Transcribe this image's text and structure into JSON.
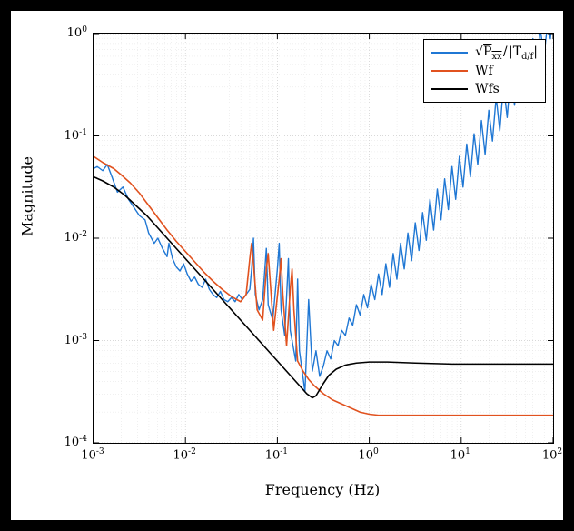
{
  "chart": {
    "type": "line-loglog",
    "background_color": "#000000",
    "panel_color": "#ffffff",
    "axes": {
      "x": {
        "scale": "log",
        "min_exp": -3,
        "max_exp": 2,
        "label": "Frequency (Hz)",
        "tick_exps": [
          -3,
          -2,
          -1,
          0,
          1,
          2
        ],
        "grid_color": "#cccccc",
        "minor_grid_color": "#e2e2e2"
      },
      "y": {
        "scale": "log",
        "min_exp": -4,
        "max_exp": 0,
        "label": "Magnitude",
        "tick_exps": [
          -4,
          -3,
          -2,
          -1,
          0
        ],
        "grid_color": "#cccccc",
        "minor_grid_color": "#e2e2e2"
      },
      "tick_fontsize": 13,
      "label_fontsize": 16
    },
    "legend": {
      "position": "upper-right",
      "border_color": "#000000",
      "background_color": "#ffffff",
      "fontsize": 14
    },
    "series": [
      {
        "name": "sqrt_Pxx_over_Tdf",
        "legend_label_html": "&radic;<span style='text-decoration:overline'>P<sub>xx</sub></span>&#8202;/&#8202;|T<sub>d/f</sub>|",
        "color": "#1f77d4",
        "line_width": 1.4,
        "points": [
          [
            -3.0,
            -1.32
          ],
          [
            -2.96,
            -1.3
          ],
          [
            -2.9,
            -1.34
          ],
          [
            -2.85,
            -1.28
          ],
          [
            -2.8,
            -1.4
          ],
          [
            -2.74,
            -1.55
          ],
          [
            -2.68,
            -1.5
          ],
          [
            -2.62,
            -1.62
          ],
          [
            -2.56,
            -1.7
          ],
          [
            -2.5,
            -1.78
          ],
          [
            -2.44,
            -1.82
          ],
          [
            -2.4,
            -1.95
          ],
          [
            -2.34,
            -2.05
          ],
          [
            -2.3,
            -2.0
          ],
          [
            -2.25,
            -2.1
          ],
          [
            -2.2,
            -2.18
          ],
          [
            -2.18,
            -2.05
          ],
          [
            -2.14,
            -2.2
          ],
          [
            -2.1,
            -2.28
          ],
          [
            -2.06,
            -2.32
          ],
          [
            -2.02,
            -2.25
          ],
          [
            -1.98,
            -2.35
          ],
          [
            -1.94,
            -2.42
          ],
          [
            -1.9,
            -2.38
          ],
          [
            -1.86,
            -2.45
          ],
          [
            -1.82,
            -2.48
          ],
          [
            -1.78,
            -2.4
          ],
          [
            -1.74,
            -2.5
          ],
          [
            -1.7,
            -2.55
          ],
          [
            -1.66,
            -2.58
          ],
          [
            -1.62,
            -2.52
          ],
          [
            -1.58,
            -2.6
          ],
          [
            -1.54,
            -2.62
          ],
          [
            -1.5,
            -2.58
          ],
          [
            -1.46,
            -2.62
          ],
          [
            -1.42,
            -2.55
          ],
          [
            -1.38,
            -2.6
          ],
          [
            -1.34,
            -2.55
          ],
          [
            -1.3,
            -2.5
          ],
          [
            -1.28,
            -2.3
          ],
          [
            -1.26,
            -2.0
          ],
          [
            -1.24,
            -2.55
          ],
          [
            -1.2,
            -2.7
          ],
          [
            -1.16,
            -2.6
          ],
          [
            -1.12,
            -2.1
          ],
          [
            -1.1,
            -2.65
          ],
          [
            -1.05,
            -2.8
          ],
          [
            -1.0,
            -2.3
          ],
          [
            -0.98,
            -2.05
          ],
          [
            -0.96,
            -2.7
          ],
          [
            -0.92,
            -2.95
          ],
          [
            -0.88,
            -2.2
          ],
          [
            -0.86,
            -2.9
          ],
          [
            -0.8,
            -3.2
          ],
          [
            -0.78,
            -2.4
          ],
          [
            -0.76,
            -3.1
          ],
          [
            -0.7,
            -3.5
          ],
          [
            -0.66,
            -2.6
          ],
          [
            -0.62,
            -3.3
          ],
          [
            -0.58,
            -3.1
          ],
          [
            -0.54,
            -3.35
          ],
          [
            -0.5,
            -3.25
          ],
          [
            -0.46,
            -3.1
          ],
          [
            -0.42,
            -3.18
          ],
          [
            -0.38,
            -3.0
          ],
          [
            -0.34,
            -3.05
          ],
          [
            -0.3,
            -2.9
          ],
          [
            -0.26,
            -2.95
          ],
          [
            -0.22,
            -2.78
          ],
          [
            -0.18,
            -2.85
          ],
          [
            -0.14,
            -2.65
          ],
          [
            -0.1,
            -2.75
          ],
          [
            -0.06,
            -2.55
          ],
          [
            -0.02,
            -2.68
          ],
          [
            0.02,
            -2.45
          ],
          [
            0.06,
            -2.6
          ],
          [
            0.1,
            -2.35
          ],
          [
            0.14,
            -2.55
          ],
          [
            0.18,
            -2.25
          ],
          [
            0.22,
            -2.48
          ],
          [
            0.26,
            -2.15
          ],
          [
            0.3,
            -2.4
          ],
          [
            0.34,
            -2.05
          ],
          [
            0.38,
            -2.3
          ],
          [
            0.42,
            -1.95
          ],
          [
            0.46,
            -2.22
          ],
          [
            0.5,
            -1.85
          ],
          [
            0.54,
            -2.12
          ],
          [
            0.58,
            -1.75
          ],
          [
            0.62,
            -2.02
          ],
          [
            0.66,
            -1.62
          ],
          [
            0.7,
            -1.92
          ],
          [
            0.74,
            -1.52
          ],
          [
            0.78,
            -1.82
          ],
          [
            0.82,
            -1.42
          ],
          [
            0.86,
            -1.72
          ],
          [
            0.9,
            -1.3
          ],
          [
            0.94,
            -1.62
          ],
          [
            0.98,
            -1.2
          ],
          [
            1.02,
            -1.5
          ],
          [
            1.06,
            -1.08
          ],
          [
            1.1,
            -1.4
          ],
          [
            1.14,
            -0.98
          ],
          [
            1.18,
            -1.28
          ],
          [
            1.22,
            -0.85
          ],
          [
            1.26,
            -1.18
          ],
          [
            1.3,
            -0.75
          ],
          [
            1.34,
            -1.05
          ],
          [
            1.38,
            -0.62
          ],
          [
            1.42,
            -0.95
          ],
          [
            1.46,
            -0.5
          ],
          [
            1.5,
            -0.82
          ],
          [
            1.54,
            -0.38
          ],
          [
            1.58,
            -0.7
          ],
          [
            1.62,
            -0.25
          ],
          [
            1.66,
            -0.58
          ],
          [
            1.7,
            -0.15
          ],
          [
            1.74,
            -0.45
          ],
          [
            1.78,
            -0.05
          ],
          [
            1.82,
            -0.35
          ],
          [
            1.86,
            0.05
          ],
          [
            1.9,
            -0.22
          ],
          [
            1.94,
            0.1
          ],
          [
            1.97,
            -0.05
          ],
          [
            2.0,
            0.25
          ]
        ]
      },
      {
        "name": "Wf",
        "legend_label_html": "Wf",
        "color": "#e1521f",
        "line_width": 1.6,
        "points": [
          [
            -3.0,
            -1.2
          ],
          [
            -2.9,
            -1.26
          ],
          [
            -2.78,
            -1.32
          ],
          [
            -2.7,
            -1.38
          ],
          [
            -2.6,
            -1.46
          ],
          [
            -2.5,
            -1.56
          ],
          [
            -2.4,
            -1.68
          ],
          [
            -2.3,
            -1.8
          ],
          [
            -2.2,
            -1.92
          ],
          [
            -2.1,
            -2.03
          ],
          [
            -2.0,
            -2.13
          ],
          [
            -1.9,
            -2.23
          ],
          [
            -1.8,
            -2.33
          ],
          [
            -1.7,
            -2.42
          ],
          [
            -1.6,
            -2.5
          ],
          [
            -1.5,
            -2.57
          ],
          [
            -1.4,
            -2.62
          ],
          [
            -1.34,
            -2.55
          ],
          [
            -1.3,
            -2.2
          ],
          [
            -1.28,
            -2.05
          ],
          [
            -1.26,
            -2.25
          ],
          [
            -1.22,
            -2.7
          ],
          [
            -1.16,
            -2.8
          ],
          [
            -1.12,
            -2.3
          ],
          [
            -1.1,
            -2.15
          ],
          [
            -1.08,
            -2.4
          ],
          [
            -1.04,
            -2.9
          ],
          [
            -0.98,
            -2.4
          ],
          [
            -0.96,
            -2.2
          ],
          [
            -0.94,
            -2.55
          ],
          [
            -0.9,
            -3.05
          ],
          [
            -0.86,
            -2.5
          ],
          [
            -0.84,
            -2.3
          ],
          [
            -0.82,
            -2.7
          ],
          [
            -0.78,
            -3.2
          ],
          [
            -0.72,
            -3.3
          ],
          [
            -0.66,
            -3.38
          ],
          [
            -0.6,
            -3.44
          ],
          [
            -0.5,
            -3.52
          ],
          [
            -0.4,
            -3.58
          ],
          [
            -0.3,
            -3.62
          ],
          [
            -0.2,
            -3.66
          ],
          [
            -0.1,
            -3.7
          ],
          [
            0.0,
            -3.72
          ],
          [
            0.1,
            -3.73
          ],
          [
            0.2,
            -3.73
          ],
          [
            0.3,
            -3.73
          ],
          [
            0.5,
            -3.73
          ],
          [
            0.8,
            -3.73
          ],
          [
            1.2,
            -3.73
          ],
          [
            1.6,
            -3.73
          ],
          [
            2.0,
            -3.73
          ]
        ]
      },
      {
        "name": "Wfs",
        "legend_label_html": "Wfs",
        "color": "#000000",
        "line_width": 1.6,
        "points": [
          [
            -3.0,
            -1.4
          ],
          [
            -2.9,
            -1.44
          ],
          [
            -2.78,
            -1.5
          ],
          [
            -2.66,
            -1.58
          ],
          [
            -2.54,
            -1.68
          ],
          [
            -2.42,
            -1.78
          ],
          [
            -2.3,
            -1.9
          ],
          [
            -2.18,
            -2.02
          ],
          [
            -2.06,
            -2.14
          ],
          [
            -1.94,
            -2.26
          ],
          [
            -1.82,
            -2.38
          ],
          [
            -1.7,
            -2.5
          ],
          [
            -1.58,
            -2.62
          ],
          [
            -1.46,
            -2.74
          ],
          [
            -1.34,
            -2.86
          ],
          [
            -1.22,
            -2.98
          ],
          [
            -1.1,
            -3.1
          ],
          [
            -0.98,
            -3.22
          ],
          [
            -0.86,
            -3.34
          ],
          [
            -0.76,
            -3.44
          ],
          [
            -0.68,
            -3.52
          ],
          [
            -0.62,
            -3.56
          ],
          [
            -0.58,
            -3.54
          ],
          [
            -0.54,
            -3.48
          ],
          [
            -0.5,
            -3.42
          ],
          [
            -0.44,
            -3.34
          ],
          [
            -0.36,
            -3.28
          ],
          [
            -0.26,
            -3.24
          ],
          [
            -0.14,
            -3.22
          ],
          [
            0.0,
            -3.21
          ],
          [
            0.2,
            -3.21
          ],
          [
            0.5,
            -3.22
          ],
          [
            0.9,
            -3.23
          ],
          [
            1.3,
            -3.23
          ],
          [
            1.7,
            -3.23
          ],
          [
            2.0,
            -3.23
          ]
        ]
      }
    ]
  }
}
